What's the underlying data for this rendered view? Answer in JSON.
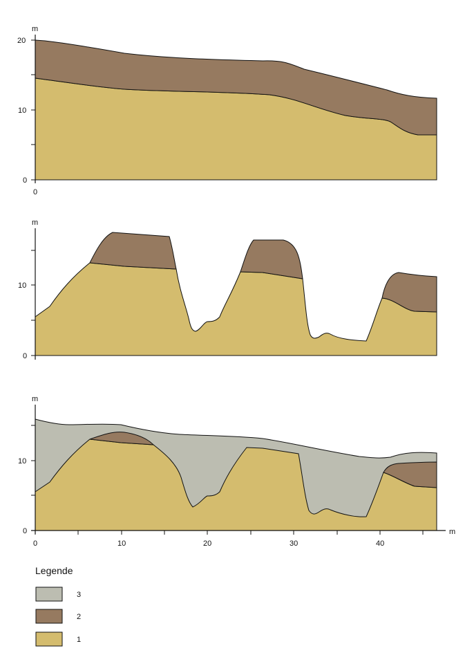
{
  "colors": {
    "layer_1": "#d4bc6e",
    "layer_2": "#967a60",
    "layer_3": "#bcbdb1",
    "outline": "#111111"
  },
  "panel_1": {
    "unit_label": "m",
    "y_ticks": [
      "20",
      "10",
      "0"
    ],
    "x_ticks": [
      "0"
    ]
  },
  "panel_2": {
    "unit_label": "m",
    "y_ticks": [
      "10",
      "0"
    ]
  },
  "panel_3": {
    "unit_label": "m",
    "y_ticks": [
      "10",
      "0"
    ],
    "x_ticks": [
      "0",
      "10",
      "20",
      "30",
      "40"
    ],
    "x_unit_label": "m"
  },
  "legend": {
    "title": "Legende",
    "items": [
      {
        "label": "3",
        "color": "#bcbdb1"
      },
      {
        "label": "2",
        "color": "#967a60"
      },
      {
        "label": "1",
        "color": "#d4bc6e"
      }
    ]
  }
}
